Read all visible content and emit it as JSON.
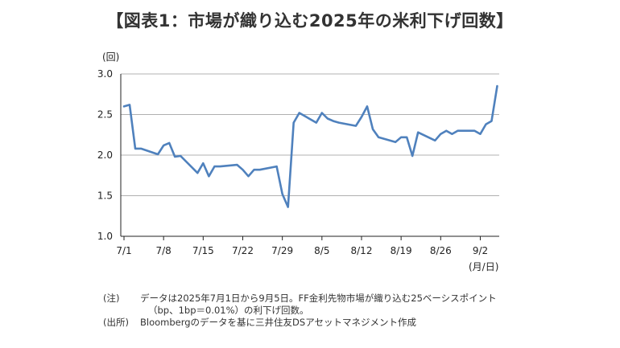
{
  "title": "【図表1：市場が織り込む2025年の米利下げ回数】",
  "unit_label": "(回)",
  "x_unit_label": "(月/日)",
  "notes": [
    {
      "tag": "(注)",
      "text": "データは2025年7月1日から9月5日。FF金利先物市場が織り込む25ベーシスポイント",
      "cont": "（bp、1bp＝0.01%）の利下げ回数。"
    },
    {
      "tag": "(出所)",
      "text": "Bloombergのデータを基に三井住友DSアセットマネジメント作成",
      "cont": ""
    }
  ],
  "colors": {
    "line": "#4f81bd",
    "grid": "#b0b0b0",
    "axis": "#222222"
  },
  "chart_data": {
    "type": "line",
    "title": "【図表1：市場が織り込む2025年の米利下げ回数】",
    "ylabel": "(回)",
    "xlabel": "(月/日)",
    "ylim": [
      1.0,
      3.0
    ],
    "yticks": [
      "1.0",
      "1.5",
      "2.0",
      "2.5",
      "3.0"
    ],
    "xticks": [
      "7/1",
      "7/8",
      "7/15",
      "7/22",
      "7/29",
      "8/5",
      "8/12",
      "8/19",
      "8/26",
      "9/2"
    ],
    "grid": true,
    "series": [
      {
        "x": [
          "7/1",
          "7/2",
          "7/3",
          "7/4",
          "7/7",
          "7/8",
          "7/9",
          "7/10",
          "7/11",
          "7/14",
          "7/15",
          "7/16",
          "7/17",
          "7/18",
          "7/21",
          "7/22",
          "7/23",
          "7/24",
          "7/25",
          "7/28",
          "7/29",
          "7/30",
          "7/31",
          "8/1",
          "8/4",
          "8/5",
          "8/6",
          "8/7",
          "8/8",
          "8/11",
          "8/12",
          "8/13",
          "8/14",
          "8/15",
          "8/18",
          "8/19",
          "8/20",
          "8/21",
          "8/22",
          "8/25",
          "8/26",
          "8/27",
          "8/28",
          "8/29",
          "9/1",
          "9/2",
          "9/3",
          "9/4",
          "9/5"
        ],
        "values": [
          2.6,
          2.62,
          2.08,
          2.08,
          2.01,
          2.12,
          2.15,
          1.98,
          1.99,
          1.78,
          1.9,
          1.74,
          1.86,
          1.86,
          1.88,
          1.82,
          1.74,
          1.82,
          1.82,
          1.86,
          1.52,
          1.36,
          2.4,
          2.52,
          2.4,
          2.52,
          2.45,
          2.42,
          2.4,
          2.36,
          2.47,
          2.6,
          2.32,
          2.22,
          2.16,
          2.22,
          2.22,
          1.99,
          2.28,
          2.18,
          2.26,
          2.3,
          2.26,
          2.3,
          2.3,
          2.26,
          2.38,
          2.42,
          2.85
        ]
      }
    ]
  }
}
